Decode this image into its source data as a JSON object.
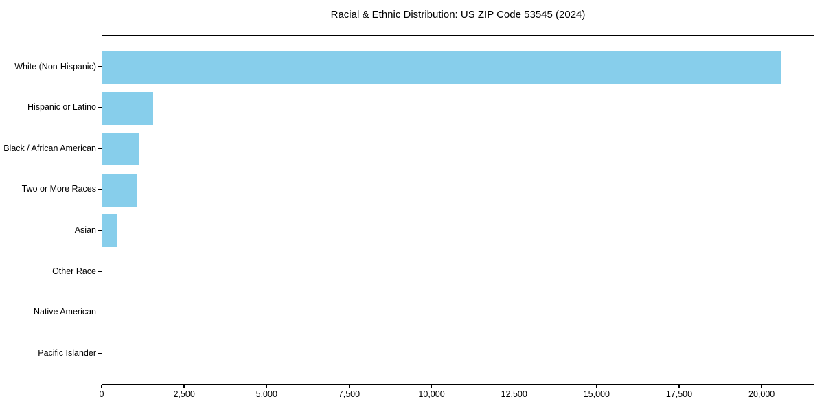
{
  "chart_data": {
    "type": "bar",
    "orientation": "horizontal",
    "title": "Racial & Ethnic Distribution: US ZIP Code 53545 (2024)",
    "categories": [
      "White (Non-Hispanic)",
      "Hispanic or Latino",
      "Black / African American",
      "Two or More Races",
      "Asian",
      "Other Race",
      "Native American",
      "Pacific Islander"
    ],
    "values": [
      20570,
      1530,
      1125,
      1050,
      450,
      0,
      0,
      0
    ],
    "xlabel": "",
    "ylabel": "",
    "xlim": [
      0,
      21600
    ],
    "x_ticks": [
      0,
      2500,
      5000,
      7500,
      10000,
      12500,
      15000,
      17500,
      20000
    ],
    "x_tick_labels": [
      "0",
      "2,500",
      "5,000",
      "7,500",
      "10,000",
      "12,500",
      "15,000",
      "17,500",
      "20,000"
    ],
    "bar_color": "#87CEEB",
    "axis_color": "#000000",
    "grid": false,
    "legend": "none"
  }
}
